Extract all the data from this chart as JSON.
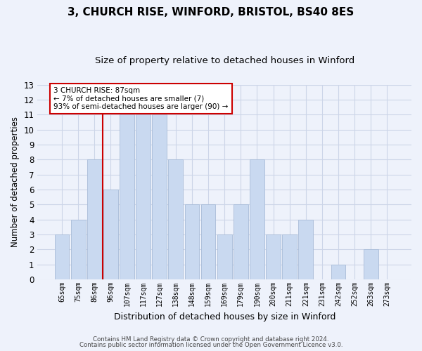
{
  "title1": "3, CHURCH RISE, WINFORD, BRISTOL, BS40 8ES",
  "title2": "Size of property relative to detached houses in Winford",
  "xlabel": "Distribution of detached houses by size in Winford",
  "ylabel": "Number of detached properties",
  "categories": [
    "65sqm",
    "75sqm",
    "86sqm",
    "96sqm",
    "107sqm",
    "117sqm",
    "127sqm",
    "138sqm",
    "148sqm",
    "159sqm",
    "169sqm",
    "179sqm",
    "190sqm",
    "200sqm",
    "211sqm",
    "221sqm",
    "231sqm",
    "242sqm",
    "252sqm",
    "263sqm",
    "273sqm"
  ],
  "values": [
    3,
    4,
    8,
    6,
    11,
    11,
    11,
    8,
    5,
    5,
    3,
    5,
    8,
    3,
    3,
    4,
    0,
    1,
    0,
    2,
    0
  ],
  "bar_color": "#c9d9f0",
  "bar_edge_color": "#a8bcd8",
  "ylim": [
    0,
    13
  ],
  "yticks": [
    0,
    1,
    2,
    3,
    4,
    5,
    6,
    7,
    8,
    9,
    10,
    11,
    12,
    13
  ],
  "property_label": "3 CHURCH RISE: 87sqm",
  "annotation_line1": "← 7% of detached houses are smaller (7)",
  "annotation_line2": "93% of semi-detached houses are larger (90) →",
  "red_line_x": 2.5,
  "annotation_box_color": "#ffffff",
  "annotation_border_color": "#cc0000",
  "footnote1": "Contains HM Land Registry data © Crown copyright and database right 2024.",
  "footnote2": "Contains public sector information licensed under the Open Government Licence v3.0.",
  "grid_color": "#ccd5e8",
  "background_color": "#eef2fb"
}
